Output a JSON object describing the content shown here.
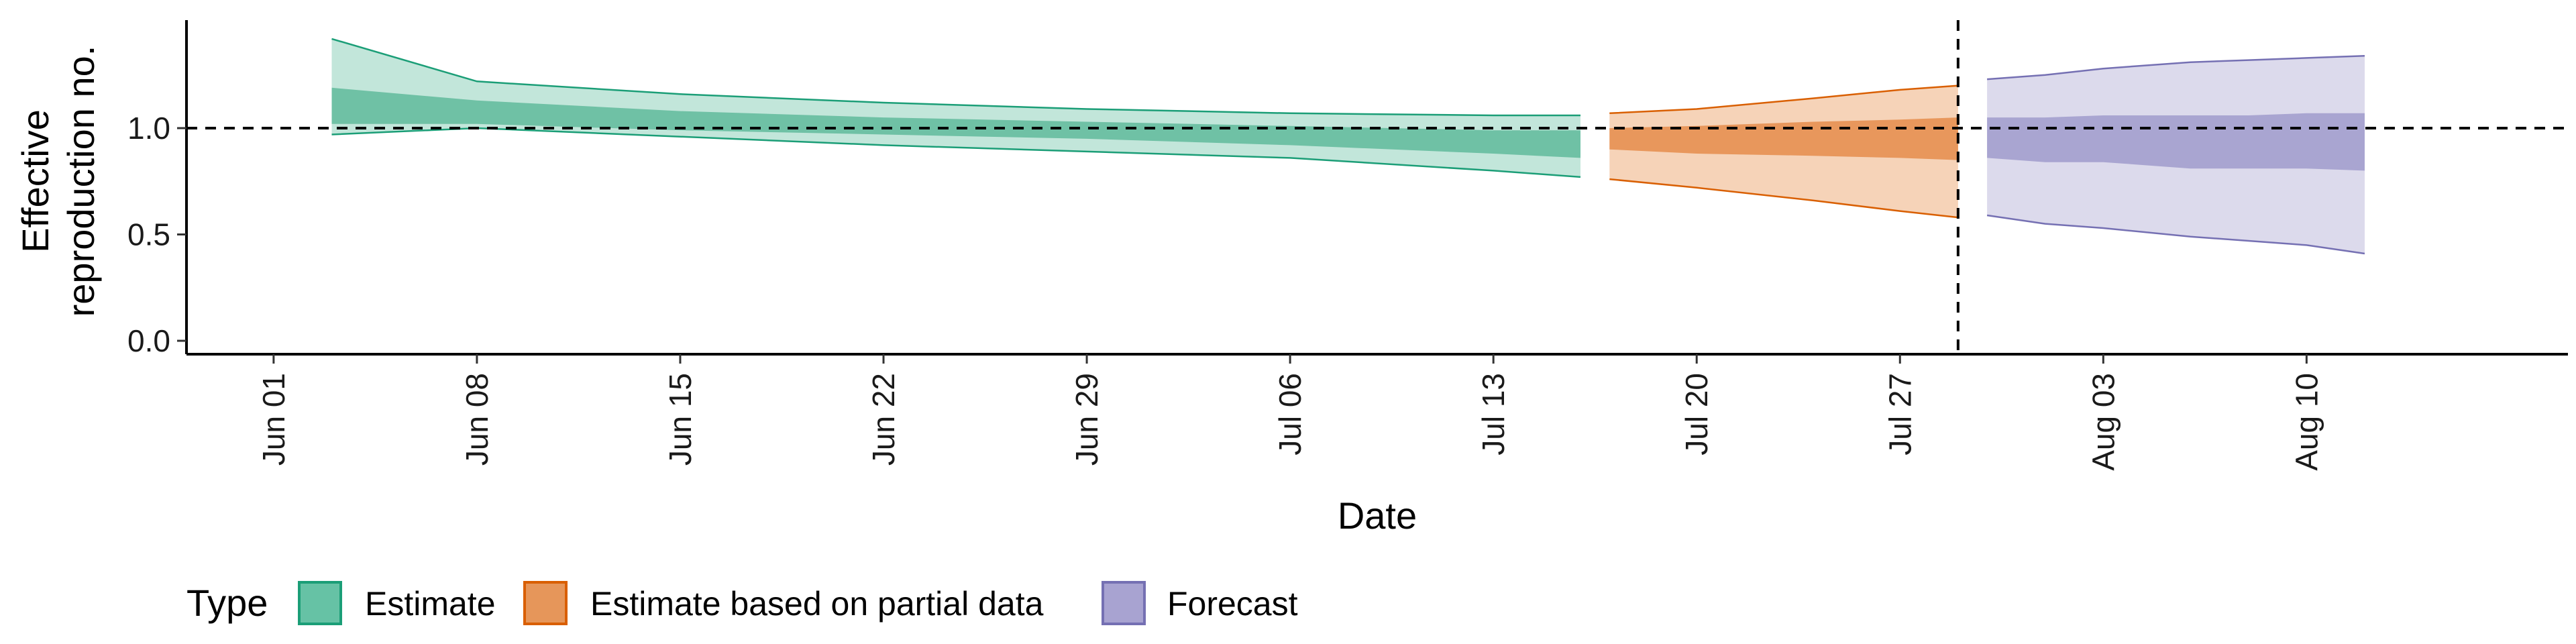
{
  "chart_data": {
    "type": "area",
    "xlabel": "Date",
    "ylabel": [
      "Effective",
      "reproduction no."
    ],
    "x_range": [
      "2021-05-29",
      "2021-08-19"
    ],
    "ylim": [
      0,
      1.5
    ],
    "y_ticks": [
      0.0,
      0.5,
      1.0
    ],
    "y_tick_labels": [
      "0.0",
      "0.5",
      "1.0"
    ],
    "x_ticks": [
      "2021-06-01",
      "2021-06-08",
      "2021-06-15",
      "2021-06-22",
      "2021-06-29",
      "2021-07-06",
      "2021-07-13",
      "2021-07-20",
      "2021-07-27",
      "2021-08-03",
      "2021-08-10"
    ],
    "x_tick_labels": [
      "Jun 01",
      "Jun 08",
      "Jun 15",
      "Jun 22",
      "Jun 29",
      "Jul 06",
      "Jul 13",
      "Jul 20",
      "Jul 27",
      "Aug 03",
      "Aug 10"
    ],
    "reference_line_y": 1.0,
    "reference_line_x": "2021-07-29",
    "legend": {
      "title": "Type",
      "placement": "bottom",
      "items": [
        {
          "label": "Estimate",
          "color": "#66c2a5",
          "border": "#1b9e77"
        },
        {
          "label": "Estimate based on partial data",
          "color": "#e6965a",
          "border": "#d95f02"
        },
        {
          "label": "Forecast",
          "color": "#a8a3d1",
          "border": "#7570b3"
        }
      ]
    },
    "series": [
      {
        "name": "Estimate",
        "fill_light": "#c2e6da",
        "fill_dark": "#6fc1a5",
        "line": "#1b9e77",
        "x": [
          "2021-06-03",
          "2021-06-08",
          "2021-06-15",
          "2021-06-22",
          "2021-06-29",
          "2021-07-06",
          "2021-07-13",
          "2021-07-16"
        ],
        "outer_lower": [
          0.97,
          1.0,
          0.96,
          0.92,
          0.89,
          0.86,
          0.8,
          0.77
        ],
        "outer_upper": [
          1.42,
          1.22,
          1.16,
          1.12,
          1.09,
          1.07,
          1.06,
          1.06
        ],
        "inner_lower": [
          1.02,
          1.02,
          0.99,
          0.97,
          0.95,
          0.92,
          0.88,
          0.86
        ],
        "inner_upper": [
          1.19,
          1.13,
          1.08,
          1.05,
          1.03,
          1.01,
          0.99,
          0.99
        ]
      },
      {
        "name": "Estimate based on partial data",
        "fill_light": "#f6d3b8",
        "fill_dark": "#e8975c",
        "line": "#d95f02",
        "x": [
          "2021-07-17",
          "2021-07-20",
          "2021-07-24",
          "2021-07-27",
          "2021-07-29"
        ],
        "outer_lower": [
          0.76,
          0.72,
          0.66,
          0.61,
          0.58
        ],
        "outer_upper": [
          1.07,
          1.09,
          1.14,
          1.18,
          1.2
        ],
        "inner_lower": [
          0.9,
          0.88,
          0.87,
          0.86,
          0.85
        ],
        "inner_upper": [
          1.0,
          1.01,
          1.03,
          1.04,
          1.05
        ]
      },
      {
        "name": "Forecast",
        "fill_light": "#dcdaec",
        "fill_dark": "#a9a5d1",
        "line": "#7570b3",
        "x": [
          "2021-07-30",
          "2021-08-01",
          "2021-08-03",
          "2021-08-06",
          "2021-08-08",
          "2021-08-10",
          "2021-08-12"
        ],
        "outer_lower": [
          0.59,
          0.55,
          0.53,
          0.49,
          0.47,
          0.45,
          0.41
        ],
        "outer_upper": [
          1.23,
          1.25,
          1.28,
          1.31,
          1.32,
          1.33,
          1.34
        ],
        "inner_lower": [
          0.86,
          0.84,
          0.84,
          0.81,
          0.81,
          0.81,
          0.8
        ],
        "inner_upper": [
          1.05,
          1.05,
          1.06,
          1.06,
          1.06,
          1.07,
          1.07
        ]
      }
    ]
  }
}
